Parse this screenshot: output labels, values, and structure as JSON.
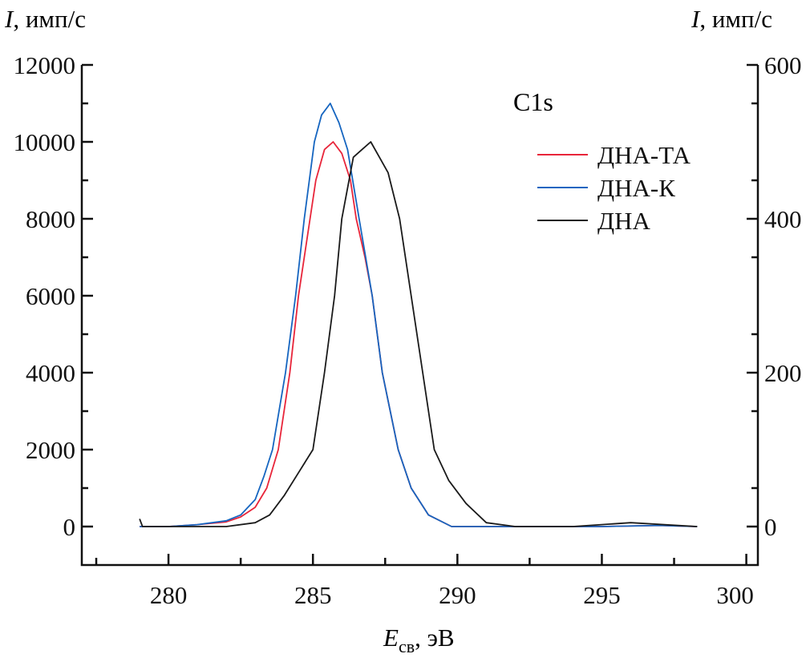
{
  "chart_data": {
    "type": "line",
    "title": "C1s",
    "xlabel": {
      "main": "E",
      "sub": "св",
      "unit": ", эВ"
    },
    "ylabel_left": {
      "main": "I",
      "unit": ", имп/с"
    },
    "ylabel_right": {
      "main": "I",
      "unit": ", имп/с"
    },
    "xlim": [
      277,
      300.4
    ],
    "ylim_left": [
      -1000,
      12000
    ],
    "ylim_right": [
      -50,
      600
    ],
    "x_ticks": [
      280,
      285,
      290,
      295,
      300
    ],
    "x_tick_labels": [
      "280",
      "285",
      "290",
      "295",
      "300"
    ],
    "y_ticks_left": [
      0,
      2000,
      4000,
      6000,
      8000,
      10000,
      12000
    ],
    "y_tick_labels_left": [
      "0",
      "2000",
      "4000",
      "6000",
      "8000",
      "10000",
      "12000"
    ],
    "y_ticks_right": [
      0,
      200,
      400,
      600
    ],
    "y_tick_labels_right": [
      "0",
      "200",
      "400",
      "600"
    ],
    "legend_placement": "top-right",
    "series": [
      {
        "name": "ДНА-ТА",
        "color": "#e8253a",
        "axis": "left",
        "x": [
          279,
          280,
          281,
          282,
          282.5,
          283,
          283.4,
          283.8,
          284.2,
          284.5,
          284.9,
          285.1,
          285.4,
          285.7,
          286,
          286.3,
          286.5,
          286.8,
          287.05,
          287.4,
          287.95,
          288.4,
          289,
          289.8,
          291,
          293,
          295,
          297,
          298.3
        ],
        "y": [
          0,
          0,
          50,
          120,
          250,
          500,
          1000,
          2000,
          4000,
          6000,
          8000,
          9000,
          9800,
          10000,
          9700,
          9000,
          8000,
          7000,
          6000,
          4000,
          2000,
          1000,
          300,
          0,
          0,
          0,
          0,
          30,
          0
        ]
      },
      {
        "name": "ДНА-К",
        "color": "#1565c0",
        "axis": "left",
        "x": [
          279,
          280,
          281,
          282,
          282.5,
          283,
          283.3,
          283.6,
          284.05,
          284.4,
          284.7,
          285.05,
          285.3,
          285.6,
          285.9,
          286.2,
          286.6,
          287.05,
          287.4,
          287.95,
          288.4,
          289,
          289.8,
          291,
          293,
          295,
          297,
          298.3
        ],
        "y": [
          0,
          0,
          50,
          150,
          300,
          700,
          1300,
          2000,
          4000,
          6000,
          8000,
          10000,
          10700,
          11000,
          10500,
          9800,
          8000,
          6000,
          4000,
          2000,
          1000,
          300,
          0,
          0,
          0,
          0,
          30,
          0
        ]
      },
      {
        "name": "ДНА",
        "color": "#1a1a1a",
        "axis": "right",
        "x": [
          279,
          279.1,
          280,
          281,
          282,
          283,
          283.5,
          284,
          284.5,
          285,
          285.4,
          285.75,
          286,
          286.4,
          286.7,
          287,
          287.3,
          287.6,
          288,
          288.4,
          288.8,
          289.2,
          289.7,
          290.3,
          291,
          292,
          294,
          296,
          298.3
        ],
        "y": [
          10,
          0,
          0,
          0,
          0,
          5,
          15,
          40,
          70,
          100,
          200,
          300,
          400,
          480,
          490,
          500,
          480,
          460,
          400,
          300,
          200,
          100,
          60,
          30,
          5,
          0,
          0,
          5,
          0
        ]
      }
    ]
  }
}
